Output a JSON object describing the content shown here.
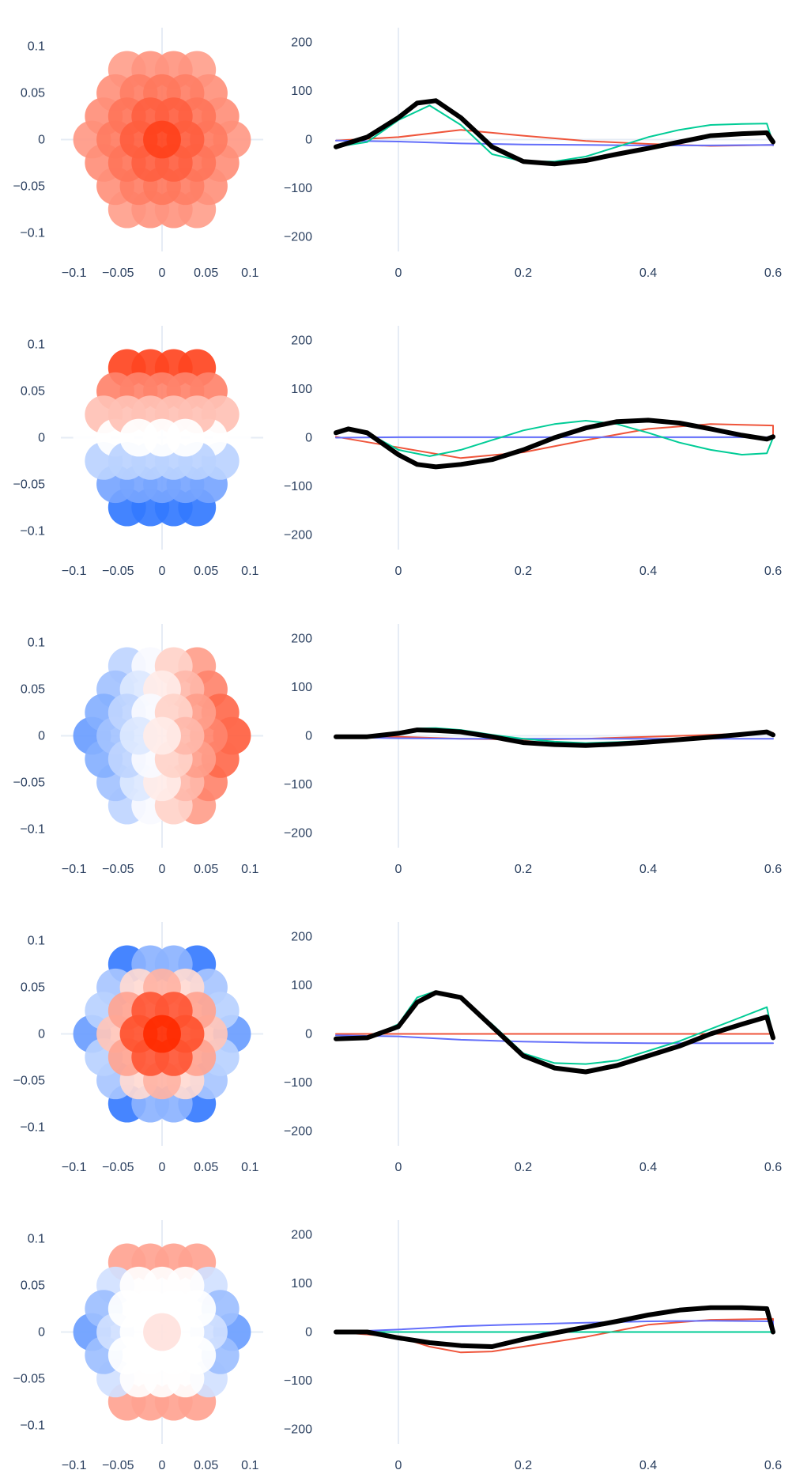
{
  "colors": {
    "tick_text": "#2a3f5f",
    "zero_line": "#e6ecf5",
    "series_red": "#EF553B",
    "series_blue": "#636EFA",
    "series_green": "#00CC96",
    "series_black": "#000000",
    "scale_neg": "#1565ff",
    "scale_mid": "#ffffff",
    "scale_pos": "#ff2a00"
  },
  "chart_data": [
    {
      "type": "scatter",
      "xlim": [
        -0.115,
        0.115
      ],
      "ylim": [
        -0.12,
        0.12
      ],
      "xticks": [
        -0.1,
        -0.05,
        0,
        0.05,
        0.1
      ],
      "xtick_labels": [
        "−0.1",
        "−0.05",
        "0",
        "0.05",
        "0.1"
      ],
      "yticks": [
        -0.1,
        -0.05,
        0,
        0.05,
        0.1
      ],
      "ytick_labels": [
        "−0.1",
        "−0.05",
        "0",
        "0.05",
        "0.1"
      ],
      "pattern": "radial",
      "strength": 0.85,
      "marker_size_data": 0.0215,
      "points_note": "disc of markers, radius 0.09, color by intensity"
    },
    {
      "type": "line",
      "xlim": [
        -0.1,
        0.6
      ],
      "ylim": [
        -230,
        230
      ],
      "xticks": [
        0,
        0.2,
        0.4,
        0.6
      ],
      "xtick_labels": [
        "0",
        "0.2",
        "0.4",
        "0.6"
      ],
      "yticks": [
        200,
        100,
        0,
        -100,
        -200
      ],
      "ytick_labels": [
        "200",
        "100",
        "0",
        "−100",
        "−200"
      ],
      "series": [
        {
          "color": "red",
          "x": [
            -0.1,
            0,
            0.1,
            0.2,
            0.3,
            0.4,
            0.5,
            0.6,
            0.6
          ],
          "y": [
            -2,
            5,
            20,
            8,
            -3,
            -9,
            -13,
            -11,
            -12
          ]
        },
        {
          "color": "blue",
          "x": [
            -0.1,
            0,
            0.1,
            0.2,
            0.3,
            0.4,
            0.5,
            0.6,
            0.6
          ],
          "y": [
            -2,
            -4,
            -8,
            -10,
            -11,
            -12,
            -12,
            -11,
            -12
          ]
        },
        {
          "color": "green",
          "x": [
            -0.1,
            -0.05,
            0,
            0.05,
            0.1,
            0.15,
            0.2,
            0.25,
            0.3,
            0.35,
            0.4,
            0.45,
            0.5,
            0.55,
            0.59,
            0.6
          ],
          "y": [
            -15,
            -5,
            40,
            70,
            30,
            -30,
            -45,
            -45,
            -35,
            -15,
            5,
            20,
            30,
            32,
            33,
            -8
          ]
        },
        {
          "color": "black",
          "x": [
            -0.1,
            -0.05,
            0,
            0.03,
            0.06,
            0.1,
            0.15,
            0.2,
            0.25,
            0.3,
            0.35,
            0.4,
            0.45,
            0.5,
            0.55,
            0.59,
            0.6
          ],
          "y": [
            -15,
            5,
            45,
            75,
            80,
            45,
            -15,
            -45,
            -50,
            -43,
            -30,
            -18,
            -5,
            8,
            12,
            14,
            -5
          ]
        }
      ]
    },
    {
      "type": "scatter",
      "xlim": [
        -0.115,
        0.115
      ],
      "ylim": [
        -0.12,
        0.12
      ],
      "xticks": [
        -0.1,
        -0.05,
        0,
        0.05,
        0.1
      ],
      "xtick_labels": [
        "−0.1",
        "−0.05",
        "0",
        "0.05",
        "0.1"
      ],
      "yticks": [
        -0.1,
        -0.05,
        0,
        0.05,
        0.1
      ],
      "ytick_labels": [
        "−0.1",
        "−0.05",
        "0",
        "0.05",
        "0.1"
      ],
      "pattern": "vertical",
      "strength": 1.0,
      "marker_size_data": 0.0215
    },
    {
      "type": "line",
      "xlim": [
        -0.1,
        0.6
      ],
      "ylim": [
        -230,
        230
      ],
      "xticks": [
        0,
        0.2,
        0.4,
        0.6
      ],
      "xtick_labels": [
        "0",
        "0.2",
        "0.4",
        "0.6"
      ],
      "yticks": [
        200,
        100,
        0,
        -100,
        -200
      ],
      "ytick_labels": [
        "200",
        "100",
        "0",
        "−100",
        "−200"
      ],
      "series": [
        {
          "color": "red",
          "x": [
            -0.1,
            0,
            0.1,
            0.2,
            0.3,
            0.4,
            0.5,
            0.6,
            0.6
          ],
          "y": [
            2,
            -20,
            -42,
            -30,
            -5,
            18,
            28,
            25,
            0
          ]
        },
        {
          "color": "blue",
          "x": [
            -0.1,
            0,
            0.1,
            0.2,
            0.3,
            0.4,
            0.5,
            0.6,
            0.6
          ],
          "y": [
            0,
            1,
            1,
            1,
            1,
            1,
            1,
            1,
            1
          ]
        },
        {
          "color": "green",
          "x": [
            -0.1,
            -0.08,
            -0.05,
            0,
            0.05,
            0.1,
            0.15,
            0.2,
            0.25,
            0.3,
            0.35,
            0.4,
            0.45,
            0.5,
            0.55,
            0.59,
            0.6
          ],
          "y": [
            10,
            18,
            10,
            -25,
            -38,
            -25,
            -5,
            15,
            28,
            35,
            28,
            10,
            -10,
            -25,
            -35,
            -32,
            0
          ]
        },
        {
          "color": "black",
          "x": [
            -0.1,
            -0.08,
            -0.05,
            0,
            0.03,
            0.06,
            0.1,
            0.15,
            0.2,
            0.25,
            0.3,
            0.35,
            0.4,
            0.45,
            0.5,
            0.55,
            0.59,
            0.6
          ],
          "y": [
            10,
            18,
            10,
            -35,
            -55,
            -60,
            -55,
            -45,
            -25,
            0,
            20,
            33,
            36,
            30,
            18,
            5,
            -3,
            2
          ]
        }
      ]
    },
    {
      "type": "scatter",
      "xlim": [
        -0.115,
        0.115
      ],
      "ylim": [
        -0.12,
        0.12
      ],
      "xticks": [
        -0.1,
        -0.05,
        0,
        0.05,
        0.1
      ],
      "xtick_labels": [
        "−0.1",
        "−0.05",
        "0",
        "0.05",
        "0.1"
      ],
      "yticks": [
        -0.1,
        -0.05,
        0,
        0.05,
        0.1
      ],
      "ytick_labels": [
        "−0.1",
        "−0.05",
        "0",
        "0.05",
        "0.1"
      ],
      "pattern": "horizontal",
      "strength": 0.75,
      "marker_size_data": 0.0215
    },
    {
      "type": "line",
      "xlim": [
        -0.1,
        0.6
      ],
      "ylim": [
        -230,
        230
      ],
      "xticks": [
        0,
        0.2,
        0.4,
        0.6
      ],
      "xtick_labels": [
        "0",
        "0.2",
        "0.4",
        "0.6"
      ],
      "yticks": [
        200,
        100,
        0,
        -100,
        -200
      ],
      "ytick_labels": [
        "200",
        "100",
        "0",
        "−100",
        "−200"
      ],
      "series": [
        {
          "color": "red",
          "x": [
            -0.1,
            0,
            0.1,
            0.2,
            0.3,
            0.4,
            0.5,
            0.6,
            0.6
          ],
          "y": [
            0,
            -2,
            -6,
            -8,
            -6,
            -2,
            2,
            6,
            0
          ]
        },
        {
          "color": "blue",
          "x": [
            -0.1,
            0,
            0.1,
            0.2,
            0.3,
            0.4,
            0.5,
            0.6,
            0.6
          ],
          "y": [
            -3,
            -5,
            -6,
            -6,
            -6,
            -6,
            -6,
            -6,
            -6
          ]
        },
        {
          "color": "green",
          "x": [
            -0.1,
            -0.05,
            0,
            0.03,
            0.06,
            0.1,
            0.15,
            0.2,
            0.25,
            0.3,
            0.35,
            0.4,
            0.45,
            0.5,
            0.55,
            0.59,
            0.6
          ],
          "y": [
            -2,
            -2,
            5,
            15,
            16,
            12,
            2,
            -6,
            -12,
            -15,
            -13,
            -10,
            -5,
            0,
            5,
            9,
            2
          ]
        },
        {
          "color": "black",
          "x": [
            -0.1,
            -0.05,
            0,
            0.03,
            0.06,
            0.1,
            0.15,
            0.2,
            0.25,
            0.3,
            0.35,
            0.4,
            0.45,
            0.5,
            0.55,
            0.59,
            0.6
          ],
          "y": [
            -2,
            -2,
            5,
            12,
            11,
            8,
            -2,
            -14,
            -18,
            -20,
            -17,
            -13,
            -8,
            -3,
            3,
            8,
            2
          ]
        }
      ]
    },
    {
      "type": "scatter",
      "xlim": [
        -0.115,
        0.115
      ],
      "ylim": [
        -0.12,
        0.12
      ],
      "xticks": [
        -0.1,
        -0.05,
        0,
        0.05,
        0.1
      ],
      "xtick_labels": [
        "−0.1",
        "−0.05",
        "0",
        "0.05",
        "0.1"
      ],
      "yticks": [
        -0.1,
        -0.05,
        0,
        0.05,
        0.1
      ],
      "ytick_labels": [
        "−0.1",
        "−0.05",
        "0",
        "0.05",
        "0.1"
      ],
      "pattern": "radial_bipolar",
      "strength": 1.0,
      "marker_size_data": 0.0215
    },
    {
      "type": "line",
      "xlim": [
        -0.1,
        0.6
      ],
      "ylim": [
        -230,
        230
      ],
      "xticks": [
        0,
        0.2,
        0.4,
        0.6
      ],
      "xtick_labels": [
        "0",
        "0.2",
        "0.4",
        "0.6"
      ],
      "yticks": [
        200,
        100,
        0,
        -100,
        -200
      ],
      "ytick_labels": [
        "200",
        "100",
        "0",
        "−100",
        "−200"
      ],
      "series": [
        {
          "color": "red",
          "x": [
            -0.1,
            0,
            0.1,
            0.2,
            0.3,
            0.4,
            0.5,
            0.6,
            0.6
          ],
          "y": [
            0,
            0,
            0,
            0,
            0,
            0,
            0,
            0,
            0
          ]
        },
        {
          "color": "blue",
          "x": [
            -0.1,
            0,
            0.1,
            0.2,
            0.3,
            0.4,
            0.5,
            0.6,
            0.6
          ],
          "y": [
            -3,
            -5,
            -12,
            -16,
            -18,
            -19,
            -19,
            -19,
            -19
          ]
        },
        {
          "color": "green",
          "x": [
            -0.1,
            -0.05,
            0,
            0.03,
            0.06,
            0.1,
            0.15,
            0.2,
            0.25,
            0.3,
            0.35,
            0.4,
            0.45,
            0.5,
            0.55,
            0.59,
            0.6
          ],
          "y": [
            -10,
            -10,
            20,
            75,
            88,
            75,
            20,
            -40,
            -60,
            -62,
            -55,
            -35,
            -15,
            10,
            35,
            55,
            -5
          ]
        },
        {
          "color": "black",
          "x": [
            -0.1,
            -0.05,
            0,
            0.03,
            0.06,
            0.1,
            0.15,
            0.2,
            0.25,
            0.3,
            0.35,
            0.4,
            0.45,
            0.5,
            0.55,
            0.59,
            0.6
          ],
          "y": [
            -10,
            -8,
            15,
            65,
            85,
            75,
            15,
            -45,
            -70,
            -78,
            -65,
            -45,
            -25,
            0,
            20,
            35,
            -8
          ]
        }
      ]
    },
    {
      "type": "scatter",
      "xlim": [
        -0.115,
        0.115
      ],
      "ylim": [
        -0.12,
        0.12
      ],
      "xticks": [
        -0.1,
        -0.05,
        0,
        0.05,
        0.1
      ],
      "xtick_labels": [
        "−0.1",
        "−0.05",
        "0",
        "0.05",
        "0.1"
      ],
      "yticks": [
        -0.1,
        -0.05,
        0,
        0.05,
        0.1
      ],
      "ytick_labels": [
        "−0.1",
        "−0.05",
        "0",
        "0.05",
        "0.1"
      ],
      "pattern": "mixed",
      "strength": 0.9,
      "marker_size_data": 0.0215
    },
    {
      "type": "line",
      "xlim": [
        -0.1,
        0.6
      ],
      "ylim": [
        -230,
        230
      ],
      "xticks": [
        0,
        0.2,
        0.4,
        0.6
      ],
      "xtick_labels": [
        "0",
        "0.2",
        "0.4",
        "0.6"
      ],
      "yticks": [
        200,
        100,
        0,
        -100,
        -200
      ],
      "ytick_labels": [
        "200",
        "100",
        "0",
        "−100",
        "−200"
      ],
      "series": [
        {
          "color": "red",
          "x": [
            -0.1,
            0,
            0.05,
            0.1,
            0.15,
            0.2,
            0.3,
            0.4,
            0.5,
            0.6,
            0.6
          ],
          "y": [
            0,
            -10,
            -30,
            -42,
            -40,
            -30,
            -10,
            15,
            25,
            27,
            0
          ]
        },
        {
          "color": "blue",
          "x": [
            -0.1,
            0,
            0.1,
            0.2,
            0.3,
            0.4,
            0.5,
            0.6,
            0.6
          ],
          "y": [
            0,
            5,
            12,
            16,
            19,
            22,
            23,
            22,
            0
          ]
        },
        {
          "color": "green",
          "x": [
            -0.1,
            0,
            0.1,
            0.2,
            0.3,
            0.4,
            0.5,
            0.6
          ],
          "y": [
            0,
            0,
            0,
            0,
            0,
            0,
            0,
            0
          ]
        },
        {
          "color": "black",
          "x": [
            -0.1,
            -0.05,
            0,
            0.05,
            0.1,
            0.15,
            0.2,
            0.25,
            0.3,
            0.35,
            0.4,
            0.45,
            0.5,
            0.55,
            0.59,
            0.6
          ],
          "y": [
            0,
            0,
            -12,
            -22,
            -28,
            -30,
            -15,
            -2,
            10,
            22,
            35,
            45,
            50,
            50,
            48,
            0
          ]
        }
      ]
    }
  ]
}
